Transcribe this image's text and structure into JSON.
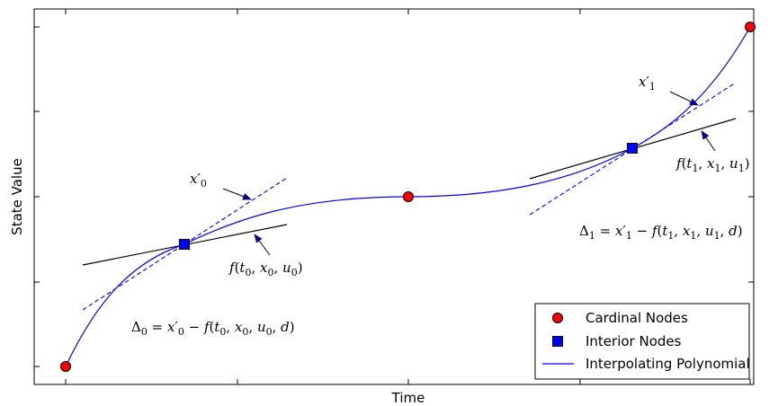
{
  "axes": {
    "xlabel": "Time",
    "ylabel": "State Value"
  },
  "legend": {
    "placement": "bottom-right",
    "items": [
      {
        "label": "Cardinal Nodes",
        "marker": "circle",
        "color": "#ff0000"
      },
      {
        "label": "Interior Nodes",
        "marker": "square",
        "color": "#0000ff"
      },
      {
        "label": "Interpolating Polynomial",
        "marker": "line",
        "color": "#0000ff"
      }
    ]
  },
  "annotations": {
    "xprime0": "x′0",
    "xprime1": "x′1",
    "f0": "f(t0, x0, u0)",
    "f1": "f(t1, x1, u1)",
    "delta0": "Δ0 = x′0 − f(t0, x0, u0, d)",
    "delta1": "Δ1 = x′1 − f(t1, x1, u1, d)"
  },
  "colors": {
    "cardinal": "#ff0000",
    "interior": "#0000ff",
    "polynomial": "#0000ff",
    "dynamics": "#000000"
  }
}
